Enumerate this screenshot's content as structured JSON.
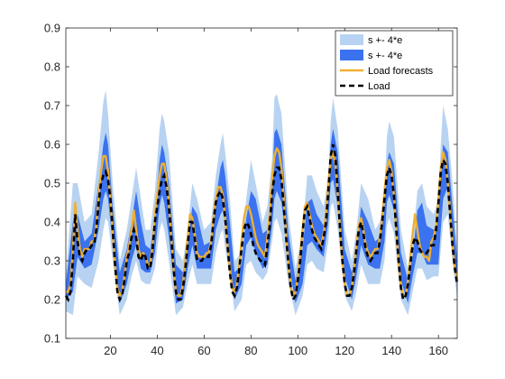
{
  "chart_data": {
    "type": "line",
    "title": "",
    "xlabel": "",
    "ylabel": "",
    "xlim": [
      1,
      168
    ],
    "ylim": [
      0.1,
      0.9
    ],
    "x_ticks": [
      20,
      40,
      60,
      80,
      100,
      120,
      140,
      160
    ],
    "y_ticks": [
      0.1,
      0.2,
      0.3,
      0.4,
      0.5,
      0.6,
      0.7,
      0.8,
      0.9
    ],
    "grid": false,
    "legend_position": "top-right",
    "colors": {
      "outer_band": "#b8d3f2",
      "inner_band": "#3a72f0",
      "forecast": "#f0b030",
      "load": "#000000",
      "axis": "#262626"
    },
    "legend": [
      {
        "label": "s +- 4*e",
        "kind": "patch",
        "color": "#b8d3f2"
      },
      {
        "label": "s +- 4*e",
        "kind": "patch",
        "color": "#3a72f0"
      },
      {
        "label": "Load forecasts",
        "kind": "line",
        "color": "#f0b030"
      },
      {
        "label": "Load",
        "kind": "dashed",
        "color": "#000000"
      }
    ],
    "series": [
      {
        "name": "Load",
        "x": [
          1,
          2,
          3,
          4,
          5,
          6,
          7,
          8,
          9,
          10,
          11,
          12,
          13,
          14,
          15,
          16,
          17,
          18,
          19,
          20,
          21,
          22,
          23,
          24,
          25,
          26,
          27,
          28,
          29,
          30,
          31,
          32,
          33,
          34,
          35,
          36,
          37,
          38,
          39,
          40,
          41,
          42,
          43,
          44,
          45,
          46,
          47,
          48,
          49,
          50,
          51,
          52,
          53,
          54,
          55,
          56,
          57,
          58,
          59,
          60,
          61,
          62,
          63,
          64,
          65,
          66,
          67,
          68,
          69,
          70,
          71,
          72,
          73,
          74,
          75,
          76,
          77,
          78,
          79,
          80,
          81,
          82,
          83,
          84,
          85,
          86,
          87,
          88,
          89,
          90,
          91,
          92,
          93,
          94,
          95,
          96,
          97,
          98,
          99,
          100,
          101,
          102,
          103,
          104,
          105,
          106,
          107,
          108,
          109,
          110,
          111,
          112,
          113,
          114,
          115,
          116,
          117,
          118,
          119,
          120,
          121,
          122,
          123,
          124,
          125,
          126,
          127,
          128,
          129,
          130,
          131,
          132,
          133,
          134,
          135,
          136,
          137,
          138,
          139,
          140,
          141,
          142,
          143,
          144,
          145,
          146,
          147,
          148,
          149,
          150,
          151,
          152,
          153,
          154,
          155,
          156,
          157,
          158,
          159,
          160,
          161,
          162,
          163,
          164,
          165,
          166,
          167,
          168
        ],
        "y": [
          0.21,
          0.2,
          0.22,
          0.3,
          0.42,
          0.35,
          0.31,
          0.3,
          0.32,
          0.33,
          0.33,
          0.34,
          0.34,
          0.38,
          0.45,
          0.5,
          0.52,
          0.53,
          0.51,
          0.46,
          0.38,
          0.29,
          0.22,
          0.2,
          0.21,
          0.25,
          0.3,
          0.32,
          0.36,
          0.38,
          0.36,
          0.31,
          0.3,
          0.32,
          0.31,
          0.28,
          0.28,
          0.33,
          0.4,
          0.44,
          0.48,
          0.51,
          0.52,
          0.49,
          0.44,
          0.36,
          0.28,
          0.22,
          0.2,
          0.2,
          0.23,
          0.28,
          0.34,
          0.4,
          0.4,
          0.36,
          0.3,
          0.3,
          0.3,
          0.31,
          0.31,
          0.31,
          0.34,
          0.4,
          0.45,
          0.47,
          0.48,
          0.46,
          0.41,
          0.34,
          0.27,
          0.22,
          0.21,
          0.23,
          0.28,
          0.33,
          0.38,
          0.4,
          0.39,
          0.37,
          0.34,
          0.32,
          0.31,
          0.3,
          0.3,
          0.29,
          0.34,
          0.39,
          0.47,
          0.52,
          0.54,
          0.54,
          0.51,
          0.44,
          0.36,
          0.29,
          0.23,
          0.2,
          0.21,
          0.25,
          0.3,
          0.37,
          0.43,
          0.44,
          0.41,
          0.38,
          0.36,
          0.35,
          0.34,
          0.33,
          0.36,
          0.4,
          0.48,
          0.57,
          0.6,
          0.57,
          0.48,
          0.38,
          0.3,
          0.24,
          0.21,
          0.21,
          0.23,
          0.27,
          0.33,
          0.38,
          0.4,
          0.37,
          0.33,
          0.31,
          0.3,
          0.31,
          0.32,
          0.32,
          0.35,
          0.4,
          0.46,
          0.52,
          0.54,
          0.52,
          0.47,
          0.38,
          0.3,
          0.23,
          0.2,
          0.21,
          0.24,
          0.29,
          0.34,
          0.36,
          0.35,
          0.33,
          0.32,
          0.32,
          0.32,
          0.33,
          0.34,
          0.34,
          0.38,
          0.45,
          0.53,
          0.56,
          0.55,
          0.5,
          0.42,
          0.34,
          0.28,
          0.24
        ]
      },
      {
        "name": "Load forecasts",
        "x": [
          1,
          2,
          3,
          4,
          5,
          6,
          7,
          8,
          9,
          10,
          11,
          12,
          13,
          14,
          15,
          16,
          17,
          18,
          19,
          20,
          21,
          22,
          23,
          24,
          25,
          26,
          27,
          28,
          29,
          30,
          31,
          32,
          33,
          34,
          35,
          36,
          37,
          38,
          39,
          40,
          41,
          42,
          43,
          44,
          45,
          46,
          47,
          48,
          49,
          50,
          51,
          52,
          53,
          54,
          55,
          56,
          57,
          58,
          59,
          60,
          61,
          62,
          63,
          64,
          65,
          66,
          67,
          68,
          69,
          70,
          71,
          72,
          73,
          74,
          75,
          76,
          77,
          78,
          79,
          80,
          81,
          82,
          83,
          84,
          85,
          86,
          87,
          88,
          89,
          90,
          91,
          92,
          93,
          94,
          95,
          96,
          97,
          98,
          99,
          100,
          101,
          102,
          103,
          104,
          105,
          106,
          107,
          108,
          109,
          110,
          111,
          112,
          113,
          114,
          115,
          116,
          117,
          118,
          119,
          120,
          121,
          122,
          123,
          124,
          125,
          126,
          127,
          128,
          129,
          130,
          131,
          132,
          133,
          134,
          135,
          136,
          137,
          138,
          139,
          140,
          141,
          142,
          143,
          144,
          145,
          146,
          147,
          148,
          149,
          150,
          151,
          152,
          153,
          154,
          155,
          156,
          157,
          158,
          159,
          160,
          161,
          162,
          163,
          164,
          165,
          166,
          167,
          168
        ],
        "y": [
          0.22,
          0.22,
          0.24,
          0.33,
          0.45,
          0.38,
          0.33,
          0.31,
          0.33,
          0.33,
          0.33,
          0.35,
          0.35,
          0.39,
          0.47,
          0.53,
          0.57,
          0.57,
          0.53,
          0.46,
          0.37,
          0.29,
          0.23,
          0.21,
          0.22,
          0.26,
          0.31,
          0.34,
          0.38,
          0.43,
          0.38,
          0.33,
          0.31,
          0.32,
          0.31,
          0.29,
          0.29,
          0.34,
          0.42,
          0.47,
          0.52,
          0.55,
          0.55,
          0.51,
          0.45,
          0.36,
          0.28,
          0.22,
          0.21,
          0.21,
          0.24,
          0.3,
          0.36,
          0.42,
          0.41,
          0.37,
          0.32,
          0.31,
          0.31,
          0.31,
          0.32,
          0.32,
          0.35,
          0.41,
          0.46,
          0.49,
          0.49,
          0.47,
          0.41,
          0.34,
          0.28,
          0.23,
          0.22,
          0.24,
          0.29,
          0.35,
          0.41,
          0.44,
          0.44,
          0.42,
          0.39,
          0.36,
          0.34,
          0.33,
          0.32,
          0.31,
          0.36,
          0.42,
          0.51,
          0.57,
          0.59,
          0.58,
          0.54,
          0.46,
          0.37,
          0.29,
          0.23,
          0.21,
          0.22,
          0.26,
          0.32,
          0.38,
          0.44,
          0.45,
          0.42,
          0.39,
          0.37,
          0.36,
          0.35,
          0.34,
          0.37,
          0.42,
          0.5,
          0.56,
          0.58,
          0.55,
          0.47,
          0.38,
          0.3,
          0.24,
          0.21,
          0.21,
          0.23,
          0.28,
          0.34,
          0.39,
          0.41,
          0.38,
          0.34,
          0.32,
          0.31,
          0.32,
          0.33,
          0.33,
          0.36,
          0.41,
          0.48,
          0.54,
          0.56,
          0.53,
          0.47,
          0.38,
          0.3,
          0.23,
          0.21,
          0.21,
          0.25,
          0.31,
          0.37,
          0.42,
          0.38,
          0.34,
          0.32,
          0.31,
          0.31,
          0.3,
          0.35,
          0.36,
          0.39,
          0.46,
          0.54,
          0.58,
          0.56,
          0.5,
          0.42,
          0.34,
          0.28,
          0.25
        ]
      }
    ],
    "bands": [
      {
        "name": "s +- 4*e",
        "which": "outer",
        "x": [
          1,
          4,
          6,
          9,
          12,
          15,
          17,
          18,
          19,
          21,
          24,
          27,
          29,
          31,
          33,
          35,
          37,
          39,
          41,
          42,
          43,
          45,
          48,
          51,
          53,
          55,
          57,
          60,
          63,
          65,
          67,
          68,
          69,
          71,
          73,
          76,
          78,
          80,
          82,
          85,
          87,
          89,
          90,
          91,
          93,
          96,
          99,
          102,
          104,
          106,
          108,
          111,
          113,
          114,
          115,
          117,
          120,
          123,
          125,
          127,
          130,
          133,
          135,
          137,
          138,
          139,
          141,
          144,
          147,
          149,
          151,
          153,
          155,
          158,
          160,
          161,
          162,
          164,
          166,
          168
        ],
        "low": [
          0.17,
          0.16,
          0.26,
          0.24,
          0.23,
          0.3,
          0.38,
          0.41,
          0.4,
          0.3,
          0.16,
          0.2,
          0.26,
          0.3,
          0.25,
          0.24,
          0.24,
          0.28,
          0.38,
          0.4,
          0.38,
          0.3,
          0.16,
          0.18,
          0.24,
          0.29,
          0.24,
          0.24,
          0.24,
          0.32,
          0.37,
          0.38,
          0.33,
          0.26,
          0.17,
          0.2,
          0.29,
          0.3,
          0.27,
          0.25,
          0.27,
          0.35,
          0.4,
          0.41,
          0.37,
          0.24,
          0.16,
          0.21,
          0.29,
          0.3,
          0.28,
          0.27,
          0.35,
          0.44,
          0.45,
          0.38,
          0.21,
          0.17,
          0.22,
          0.29,
          0.24,
          0.24,
          0.24,
          0.3,
          0.39,
          0.41,
          0.37,
          0.2,
          0.16,
          0.22,
          0.28,
          0.28,
          0.25,
          0.26,
          0.26,
          0.33,
          0.4,
          0.42,
          0.3,
          0.2
        ],
        "high": [
          0.26,
          0.5,
          0.5,
          0.4,
          0.42,
          0.58,
          0.71,
          0.74,
          0.68,
          0.5,
          0.3,
          0.38,
          0.46,
          0.54,
          0.46,
          0.38,
          0.38,
          0.48,
          0.64,
          0.68,
          0.66,
          0.58,
          0.33,
          0.3,
          0.38,
          0.5,
          0.46,
          0.38,
          0.4,
          0.52,
          0.6,
          0.63,
          0.58,
          0.46,
          0.3,
          0.32,
          0.46,
          0.56,
          0.5,
          0.4,
          0.44,
          0.56,
          0.72,
          0.73,
          0.68,
          0.42,
          0.28,
          0.38,
          0.52,
          0.52,
          0.48,
          0.44,
          0.52,
          0.66,
          0.72,
          0.64,
          0.38,
          0.3,
          0.38,
          0.5,
          0.46,
          0.38,
          0.4,
          0.48,
          0.62,
          0.66,
          0.62,
          0.38,
          0.28,
          0.34,
          0.48,
          0.5,
          0.44,
          0.42,
          0.46,
          0.6,
          0.7,
          0.64,
          0.5,
          0.33
        ]
      },
      {
        "name": "s +- 4*e",
        "which": "inner",
        "x": [
          1,
          4,
          6,
          9,
          12,
          15,
          17,
          18,
          19,
          21,
          24,
          27,
          29,
          31,
          33,
          35,
          37,
          39,
          41,
          42,
          43,
          45,
          48,
          51,
          53,
          55,
          57,
          60,
          63,
          65,
          67,
          68,
          69,
          71,
          73,
          76,
          78,
          80,
          82,
          85,
          87,
          89,
          90,
          91,
          93,
          96,
          99,
          102,
          104,
          106,
          108,
          111,
          113,
          114,
          115,
          117,
          120,
          123,
          125,
          127,
          130,
          133,
          135,
          137,
          138,
          139,
          141,
          144,
          147,
          149,
          151,
          153,
          155,
          158,
          160,
          161,
          162,
          164,
          166,
          168
        ],
        "low": [
          0.2,
          0.22,
          0.31,
          0.28,
          0.29,
          0.38,
          0.46,
          0.48,
          0.46,
          0.34,
          0.19,
          0.24,
          0.3,
          0.34,
          0.28,
          0.27,
          0.27,
          0.32,
          0.44,
          0.47,
          0.45,
          0.36,
          0.19,
          0.2,
          0.28,
          0.34,
          0.28,
          0.28,
          0.28,
          0.38,
          0.42,
          0.43,
          0.39,
          0.3,
          0.2,
          0.24,
          0.34,
          0.36,
          0.32,
          0.28,
          0.29,
          0.39,
          0.46,
          0.48,
          0.45,
          0.3,
          0.19,
          0.24,
          0.34,
          0.35,
          0.33,
          0.31,
          0.4,
          0.5,
          0.51,
          0.44,
          0.26,
          0.2,
          0.26,
          0.34,
          0.29,
          0.28,
          0.28,
          0.35,
          0.45,
          0.47,
          0.43,
          0.25,
          0.19,
          0.26,
          0.32,
          0.32,
          0.29,
          0.29,
          0.29,
          0.38,
          0.46,
          0.49,
          0.36,
          0.23
        ],
        "high": [
          0.24,
          0.4,
          0.42,
          0.35,
          0.37,
          0.5,
          0.6,
          0.63,
          0.6,
          0.44,
          0.27,
          0.33,
          0.4,
          0.48,
          0.4,
          0.34,
          0.33,
          0.42,
          0.56,
          0.6,
          0.58,
          0.5,
          0.29,
          0.27,
          0.34,
          0.44,
          0.42,
          0.34,
          0.35,
          0.46,
          0.54,
          0.56,
          0.52,
          0.4,
          0.27,
          0.29,
          0.41,
          0.48,
          0.46,
          0.37,
          0.38,
          0.49,
          0.63,
          0.64,
          0.6,
          0.37,
          0.25,
          0.33,
          0.45,
          0.46,
          0.42,
          0.39,
          0.46,
          0.6,
          0.64,
          0.58,
          0.33,
          0.27,
          0.33,
          0.44,
          0.4,
          0.35,
          0.36,
          0.43,
          0.55,
          0.58,
          0.55,
          0.32,
          0.25,
          0.31,
          0.43,
          0.45,
          0.39,
          0.38,
          0.41,
          0.52,
          0.6,
          0.58,
          0.44,
          0.3
        ]
      }
    ]
  }
}
